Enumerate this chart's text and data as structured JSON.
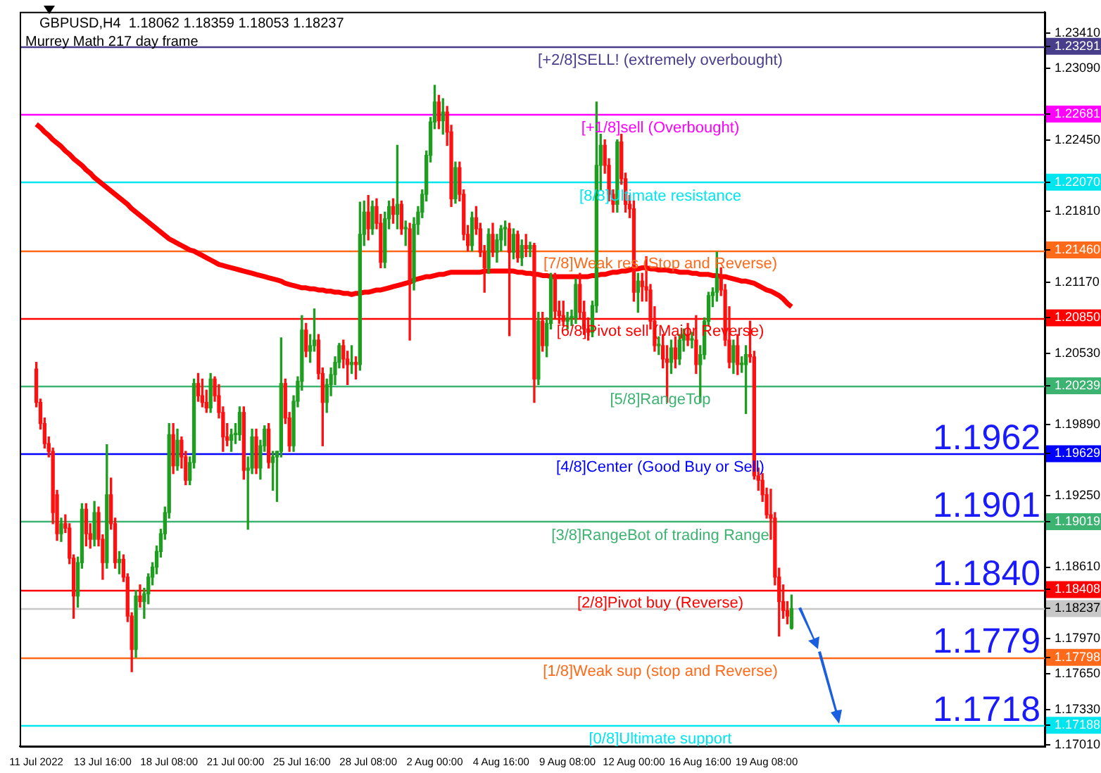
{
  "chart_data": {
    "type": "candlestick",
    "title": "GBPUSD,H4  1.18062 1.18359 1.18053 1.18237",
    "subtitle": "Murrey Math 217 day frame",
    "categories": [
      "11 Jul 2022",
      null,
      null,
      null,
      null,
      null,
      null,
      null,
      null,
      null,
      null,
      null,
      null,
      null,
      null,
      null,
      "13 Jul 16:00",
      null,
      null,
      null,
      null,
      null,
      null,
      null,
      null,
      null,
      null,
      null,
      null,
      null,
      null,
      null,
      "18 Jul 08:00",
      null,
      null,
      null,
      null,
      null,
      null,
      null,
      null,
      null,
      null,
      null,
      null,
      null,
      null,
      null,
      "21 Jul 00:00",
      null,
      null,
      null,
      null,
      null,
      null,
      null,
      null,
      null,
      null,
      null,
      null,
      null,
      null,
      null,
      "25 Jul 16:00",
      null,
      null,
      null,
      null,
      null,
      null,
      null,
      null,
      null,
      null,
      null,
      null,
      null,
      null,
      null,
      "28 Jul 08:00",
      null,
      null,
      null,
      null,
      null,
      null,
      null,
      null,
      null,
      null,
      null,
      null,
      null,
      null,
      null,
      "2 Aug 00:00",
      null,
      null,
      null,
      null,
      null,
      null,
      null,
      null,
      null,
      null,
      null,
      null,
      null,
      null,
      null,
      "4 Aug 16:00",
      null,
      null,
      null,
      null,
      null,
      null,
      null,
      null,
      null,
      null,
      null,
      null,
      null,
      null,
      null,
      "9 Aug 08:00",
      null,
      null,
      null,
      null,
      null,
      null,
      null,
      null,
      null,
      null,
      null,
      null,
      null,
      null,
      null,
      "12 Aug 00:00",
      null,
      null,
      null,
      null,
      null,
      null,
      null,
      null,
      null,
      null,
      null,
      null,
      null,
      null,
      null,
      "16 Aug 16:00",
      null,
      null,
      null,
      null,
      null,
      null,
      null,
      null,
      null,
      null,
      null,
      null,
      null,
      null,
      null,
      "19 Aug 08:00",
      null,
      null,
      null,
      null,
      null,
      null
    ],
    "ohlc": [
      [
        1.2039,
        1.2045,
        1.2005,
        1.2009
      ],
      [
        1.2009,
        1.2012,
        1.1985,
        1.199
      ],
      [
        1.199,
        1.1995,
        1.1968,
        1.1972
      ],
      [
        1.1972,
        1.1978,
        1.196,
        1.1965
      ],
      [
        1.1965,
        1.1968,
        1.19,
        1.191
      ],
      [
        1.1926,
        1.193,
        1.1885,
        1.1891
      ],
      [
        1.1891,
        1.1905,
        1.1884,
        1.19
      ],
      [
        1.19,
        1.1908,
        1.1892,
        1.1896
      ],
      [
        1.1896,
        1.19,
        1.1864,
        1.1869
      ],
      [
        1.1869,
        1.1872,
        1.1815,
        1.1835
      ],
      [
        1.1835,
        1.187,
        1.1825,
        1.1865
      ],
      [
        1.1865,
        1.1918,
        1.186,
        1.1913
      ],
      [
        1.1913,
        1.1918,
        1.188,
        1.1891
      ],
      [
        1.1891,
        1.19,
        1.1878,
        1.1886
      ],
      [
        1.1886,
        1.192,
        1.188,
        1.191
      ],
      [
        1.191,
        1.1915,
        1.188,
        1.1886
      ],
      [
        1.1886,
        1.189,
        1.185,
        1.1865
      ],
      [
        1.1865,
        1.1971,
        1.186,
        1.1926
      ],
      [
        1.1926,
        1.1941,
        1.1895,
        1.19
      ],
      [
        1.19,
        1.1905,
        1.186,
        1.1865
      ],
      [
        1.1865,
        1.1875,
        1.1855,
        1.1868
      ],
      [
        1.1868,
        1.1872,
        1.1848,
        1.1852
      ],
      [
        1.1852,
        1.1855,
        1.1812,
        1.1817
      ],
      [
        1.1817,
        1.182,
        1.1767,
        1.1787
      ],
      [
        1.1787,
        1.184,
        1.178,
        1.1835
      ],
      [
        1.1835,
        1.1845,
        1.1825,
        1.183
      ],
      [
        1.183,
        1.1842,
        1.1815,
        1.1837
      ],
      [
        1.1837,
        1.1855,
        1.1828,
        1.1852
      ],
      [
        1.1852,
        1.1865,
        1.1845,
        1.1861
      ],
      [
        1.1861,
        1.188,
        1.1855,
        1.1875
      ],
      [
        1.1875,
        1.1895,
        1.187,
        1.1891
      ],
      [
        1.1891,
        1.1915,
        1.1886,
        1.191
      ],
      [
        1.191,
        1.199,
        1.1905,
        1.198
      ],
      [
        1.198,
        1.199,
        1.1945,
        1.1952
      ],
      [
        1.1952,
        1.1985,
        1.1948,
        1.1975
      ],
      [
        1.1975,
        1.1978,
        1.195,
        1.196
      ],
      [
        1.196,
        1.1965,
        1.1935,
        1.1939
      ],
      [
        1.1939,
        1.196,
        1.1935,
        1.1955
      ],
      [
        1.1955,
        1.203,
        1.195,
        1.2026
      ],
      [
        1.2026,
        1.2035,
        1.201,
        1.2015
      ],
      [
        1.2015,
        1.203,
        1.2005,
        1.2009
      ],
      [
        1.2009,
        1.202,
        1.2,
        1.2004
      ],
      [
        1.2004,
        1.2035,
        1.2,
        1.203
      ],
      [
        1.203,
        1.2032,
        1.201,
        1.2015
      ],
      [
        1.2015,
        1.2025,
        1.1995,
        1.2
      ],
      [
        1.2,
        1.2005,
        1.1965,
        1.1978
      ],
      [
        1.1978,
        1.199,
        1.197,
        1.1975
      ],
      [
        1.1975,
        1.1985,
        1.1965,
        1.198
      ],
      [
        1.198,
        1.199,
        1.1972,
        1.198
      ],
      [
        1.198,
        1.2005,
        1.1975,
        1.2
      ],
      [
        1.2,
        1.2005,
        1.194,
        1.1948
      ],
      [
        1.1948,
        1.196,
        1.1895,
        1.195
      ],
      [
        1.195,
        1.1985,
        1.1945,
        1.1978
      ],
      [
        1.1978,
        1.1985,
        1.1945,
        1.195
      ],
      [
        1.195,
        1.1975,
        1.194,
        1.197
      ],
      [
        1.197,
        1.1988,
        1.1965,
        1.1985
      ],
      [
        1.1985,
        1.199,
        1.195,
        1.1955
      ],
      [
        1.1955,
        1.1965,
        1.193,
        1.196
      ],
      [
        1.196,
        1.1965,
        1.192,
        1.1965
      ],
      [
        1.1965,
        1.2067,
        1.196,
        1.2026
      ],
      [
        1.2026,
        1.203,
        1.199,
        1.1995
      ],
      [
        1.1995,
        1.2,
        1.1965,
        1.197
      ],
      [
        1.197,
        1.2015,
        1.1965,
        1.201
      ],
      [
        1.201,
        1.2032,
        1.2005,
        1.2028
      ],
      [
        1.2028,
        1.2087,
        1.202,
        1.2074
      ],
      [
        1.2074,
        1.208,
        1.205,
        1.2055
      ],
      [
        1.2055,
        1.207,
        1.2045,
        1.206
      ],
      [
        1.206,
        1.2093,
        1.2055,
        1.2065
      ],
      [
        1.2065,
        1.207,
        1.203,
        1.2035
      ],
      [
        1.2035,
        1.204,
        1.197,
        1.2009
      ],
      [
        1.2009,
        1.203,
        1.2,
        1.2025
      ],
      [
        1.2025,
        1.204,
        1.2015,
        1.2034
      ],
      [
        1.2034,
        1.205,
        1.2025,
        1.2045
      ],
      [
        1.2045,
        1.2062,
        1.204,
        1.206
      ],
      [
        1.206,
        1.2065,
        1.204,
        1.2048
      ],
      [
        1.2048,
        1.2055,
        1.2025,
        1.2043
      ],
      [
        1.2043,
        1.206,
        1.2035,
        1.2045
      ],
      [
        1.2045,
        1.205,
        1.203,
        1.2043
      ],
      [
        1.2043,
        1.2189,
        1.2038,
        1.216
      ],
      [
        1.216,
        1.219,
        1.215,
        1.218
      ],
      [
        1.218,
        1.2195,
        1.2155,
        1.2165
      ],
      [
        1.2165,
        1.219,
        1.216,
        1.2185
      ],
      [
        1.2185,
        1.2192,
        1.2165,
        1.217
      ],
      [
        1.217,
        1.2178,
        1.213,
        1.2135
      ],
      [
        1.2135,
        1.218,
        1.213,
        1.2174
      ],
      [
        1.2174,
        1.219,
        1.2165,
        1.2185
      ],
      [
        1.2185,
        1.2192,
        1.217,
        1.2178
      ],
      [
        1.2178,
        1.224,
        1.2165,
        1.2187
      ],
      [
        1.2187,
        1.219,
        1.216,
        1.2165
      ],
      [
        1.2165,
        1.2172,
        1.215,
        1.2165
      ],
      [
        1.2165,
        1.217,
        1.2065,
        1.2117
      ],
      [
        1.2117,
        1.2175,
        1.211,
        1.2169
      ],
      [
        1.2169,
        1.2185,
        1.216,
        1.218
      ],
      [
        1.218,
        1.22,
        1.2175,
        1.2196
      ],
      [
        1.2196,
        1.2235,
        1.219,
        1.2231
      ],
      [
        1.2231,
        1.2265,
        1.2225,
        1.2261
      ],
      [
        1.2261,
        1.2294,
        1.2255,
        1.2279
      ],
      [
        1.2279,
        1.2285,
        1.2255,
        1.2262
      ],
      [
        1.2262,
        1.2282,
        1.225,
        1.227
      ],
      [
        1.227,
        1.2275,
        1.224,
        1.2252
      ],
      [
        1.2252,
        1.2258,
        1.2185,
        1.2192
      ],
      [
        1.2192,
        1.2225,
        1.2188,
        1.222
      ],
      [
        1.222,
        1.2225,
        1.219,
        1.2196
      ],
      [
        1.2196,
        1.22,
        1.2155,
        1.216
      ],
      [
        1.216,
        1.2168,
        1.2145,
        1.215
      ],
      [
        1.215,
        1.218,
        1.2145,
        1.2175
      ],
      [
        1.2175,
        1.2185,
        1.216,
        1.2165
      ],
      [
        1.2165,
        1.217,
        1.214,
        1.2144
      ],
      [
        1.2144,
        1.215,
        1.2108,
        1.213
      ],
      [
        1.213,
        1.2165,
        1.2125,
        1.216
      ],
      [
        1.216,
        1.217,
        1.214,
        1.2144
      ],
      [
        1.2144,
        1.216,
        1.2135,
        1.2155
      ],
      [
        1.2155,
        1.2168,
        1.2145,
        1.2165
      ],
      [
        1.2165,
        1.2172,
        1.215,
        1.2165
      ],
      [
        1.2165,
        1.217,
        1.2069,
        1.2144
      ],
      [
        1.2144,
        1.2165,
        1.2138,
        1.216
      ],
      [
        1.216,
        1.2163,
        1.2135,
        1.2139
      ],
      [
        1.2139,
        1.2155,
        1.2132,
        1.215
      ],
      [
        1.215,
        1.216,
        1.214,
        1.2147
      ],
      [
        1.2147,
        1.2153,
        1.214,
        1.215
      ],
      [
        1.215,
        1.2152,
        1.2009,
        1.203
      ],
      [
        1.203,
        1.209,
        1.2025,
        1.2082
      ],
      [
        1.2082,
        1.209,
        1.2055,
        1.206
      ],
      [
        1.206,
        1.2085,
        1.205,
        1.208
      ],
      [
        1.208,
        1.2125,
        1.2075,
        1.2121
      ],
      [
        1.2121,
        1.2125,
        1.2085,
        1.2091
      ],
      [
        1.2091,
        1.21,
        1.208,
        1.2087
      ],
      [
        1.2087,
        1.21,
        1.2078,
        1.2082
      ],
      [
        1.2082,
        1.209,
        1.2075,
        1.2085
      ],
      [
        1.2085,
        1.2092,
        1.2078,
        1.2085
      ],
      [
        1.2085,
        1.212,
        1.208,
        1.2115
      ],
      [
        1.2115,
        1.2125,
        1.2085,
        1.209
      ],
      [
        1.209,
        1.21,
        1.207,
        1.2075
      ],
      [
        1.2075,
        1.2085,
        1.2065,
        1.2072
      ],
      [
        1.2072,
        1.21,
        1.2068,
        1.2096
      ],
      [
        1.2096,
        1.2279,
        1.209,
        1.2222
      ],
      [
        1.2222,
        1.225,
        1.22,
        1.224
      ],
      [
        1.224,
        1.2245,
        1.2215,
        1.2222
      ],
      [
        1.2222,
        1.2228,
        1.219,
        1.2196
      ],
      [
        1.2196,
        1.22,
        1.218,
        1.2187
      ],
      [
        1.2187,
        1.2245,
        1.218,
        1.2243
      ],
      [
        1.2243,
        1.225,
        1.2205,
        1.221
      ],
      [
        1.221,
        1.2215,
        1.218,
        1.2187
      ],
      [
        1.2187,
        1.2195,
        1.2175,
        1.2183
      ],
      [
        1.2183,
        1.219,
        1.21,
        1.2108
      ],
      [
        1.2108,
        1.2125,
        1.209,
        1.2118
      ],
      [
        1.2118,
        1.2125,
        1.21,
        1.2113
      ],
      [
        1.2113,
        1.214,
        1.21,
        1.211
      ],
      [
        1.211,
        1.2115,
        1.2075,
        1.2082
      ],
      [
        1.2082,
        1.2095,
        1.2055,
        1.206
      ],
      [
        1.206,
        1.2068,
        1.2052,
        1.206
      ],
      [
        1.206,
        1.207,
        1.204,
        1.2048
      ],
      [
        1.2048,
        1.206,
        1.2009,
        1.2045
      ],
      [
        1.2045,
        1.2065,
        1.2035,
        1.2058
      ],
      [
        1.2058,
        1.2068,
        1.204,
        1.2048
      ],
      [
        1.2048,
        1.207,
        1.2043,
        1.2065
      ],
      [
        1.2065,
        1.2075,
        1.2055,
        1.207
      ],
      [
        1.207,
        1.208,
        1.206,
        1.2065
      ],
      [
        1.2065,
        1.2072,
        1.2058,
        1.2065
      ],
      [
        1.2065,
        1.2087,
        1.2035,
        1.2043
      ],
      [
        1.2043,
        1.206,
        1.2009,
        1.2052
      ],
      [
        1.2052,
        1.2085,
        1.2048,
        1.2082
      ],
      [
        1.2082,
        1.2108,
        1.2078,
        1.2105
      ],
      [
        1.2105,
        1.2112,
        1.2095,
        1.2108
      ],
      [
        1.2108,
        1.2144,
        1.21,
        1.2121
      ],
      [
        1.2121,
        1.213,
        1.2105,
        1.211
      ],
      [
        1.211,
        1.2115,
        1.206,
        1.2065
      ],
      [
        1.2065,
        1.2095,
        1.204,
        1.2045
      ],
      [
        1.2045,
        1.2065,
        1.2035,
        1.206
      ],
      [
        1.206,
        1.207,
        1.2034,
        1.2043
      ],
      [
        1.2043,
        1.205,
        1.2036,
        1.2043
      ],
      [
        1.2043,
        1.206,
        1.1999,
        1.2052
      ],
      [
        1.2052,
        1.2082,
        1.2045,
        1.205
      ],
      [
        1.205,
        1.2055,
        1.194,
        1.1943
      ],
      [
        1.1943,
        1.195,
        1.193,
        1.1939
      ],
      [
        1.1939,
        1.1945,
        1.192,
        1.1926
      ],
      [
        1.1926,
        1.1932,
        1.1905,
        1.1908
      ],
      [
        1.1908,
        1.1931,
        1.1886,
        1.1905
      ],
      [
        1.1905,
        1.191,
        1.1845,
        1.1852
      ],
      [
        1.1852,
        1.186,
        1.1799,
        1.183
      ],
      [
        1.183,
        1.1845,
        1.1815,
        1.1822
      ],
      [
        1.1822,
        1.183,
        1.181,
        1.1817
      ],
      [
        1.18062,
        1.18359,
        1.18053,
        1.18237
      ]
    ],
    "series": [
      {
        "type": "line",
        "color": "#ff0000",
        "values": [
          1.2259,
          1.2256,
          1.2252,
          1.2249,
          1.2245,
          1.2242,
          1.2239,
          1.2235,
          1.2232,
          1.2228,
          1.2225,
          1.2222,
          1.2218,
          1.2215,
          1.2211,
          1.2208,
          1.2205,
          1.2202,
          1.2199,
          1.2196,
          1.2193,
          1.219,
          1.2187,
          1.2183,
          1.218,
          1.2177,
          1.2174,
          1.2171,
          1.2168,
          1.2165,
          1.2162,
          1.2159,
          1.2156,
          1.2154,
          1.2152,
          1.215,
          1.2148,
          1.2146,
          1.2145,
          1.2143,
          1.2141,
          1.2139,
          1.2137,
          1.2135,
          1.2133,
          1.2132,
          1.2131,
          1.213,
          1.2129,
          1.2128,
          1.2127,
          1.2126,
          1.2125,
          1.2124,
          1.2123,
          1.2122,
          1.2121,
          1.212,
          1.2119,
          1.2118,
          1.2116,
          1.2115,
          1.2114,
          1.2113,
          1.2112,
          1.2112,
          1.2111,
          1.2111,
          1.211,
          1.211,
          1.2109,
          1.2109,
          1.2108,
          1.2108,
          1.2107,
          1.2107,
          1.2106,
          1.2107,
          1.2107,
          1.2108,
          1.2108,
          1.2109,
          1.211,
          1.211,
          1.2111,
          1.2112,
          1.2113,
          1.2114,
          1.2115,
          1.2116,
          1.2117,
          1.2119,
          1.212,
          1.2121,
          1.2122,
          1.2122,
          1.2123,
          1.2124,
          1.2124,
          1.2125,
          1.2126,
          1.2126,
          1.2126,
          1.2126,
          1.2126,
          1.2126,
          1.2126,
          1.2126,
          1.2127,
          1.2127,
          1.2127,
          1.2127,
          1.2127,
          1.2127,
          1.2127,
          1.2127,
          1.2126,
          1.2126,
          1.2125,
          1.2125,
          1.2124,
          1.2124,
          1.2123,
          1.2123,
          1.2122,
          1.2122,
          1.2122,
          1.2122,
          1.2122,
          1.2122,
          1.2122,
          1.2122,
          1.2122,
          1.2122,
          1.2123,
          1.2123,
          1.2124,
          1.2124,
          1.2125,
          1.2126,
          1.2126,
          1.2127,
          1.2127,
          1.2128,
          1.2129,
          1.2129,
          1.213,
          1.213,
          1.2129,
          1.2129,
          1.2128,
          1.2128,
          1.2128,
          1.2127,
          1.2127,
          1.2126,
          1.2126,
          1.2126,
          1.2125,
          1.2125,
          1.2124,
          1.2124,
          1.2124,
          1.2123,
          1.2123,
          1.2122,
          1.2122,
          1.2121,
          1.212,
          1.2119,
          1.2118,
          1.2118,
          1.2117,
          1.2116,
          1.2114,
          1.2112,
          1.211,
          1.2109,
          1.2107,
          1.2105,
          1.2102,
          1.2098,
          1.2095
        ]
      }
    ],
    "ylim": [
      1.17,
      1.236
    ],
    "yticks": [
      {
        "value": 1.2341,
        "label": "1.23410"
      },
      {
        "value": 1.2309,
        "label": "1.23090"
      },
      {
        "value": 1.2245,
        "label": "1.22450"
      },
      {
        "value": 1.2181,
        "label": "1.21810"
      },
      {
        "value": 1.2117,
        "label": "1.21170"
      },
      {
        "value": 1.2053,
        "label": "1.20530"
      },
      {
        "value": 1.1989,
        "label": "1.19890"
      },
      {
        "value": 1.1925,
        "label": "1.19250"
      },
      {
        "value": 1.1861,
        "label": "1.18610"
      },
      {
        "value": 1.1797,
        "label": "1.17970"
      },
      {
        "value": 1.1765,
        "label": "1.17650"
      },
      {
        "value": 1.1733,
        "label": "1.17330"
      },
      {
        "value": 1.1701,
        "label": "1.17010"
      },
      {
        "value": 1.23291,
        "label": "1.23291"
      },
      {
        "value": 1.22681,
        "label": "1.22681"
      },
      {
        "value": 1.2207,
        "label": "1.22070"
      },
      {
        "value": 1.2146,
        "label": "1.21460"
      },
      {
        "value": 1.2085,
        "label": "1.20850"
      },
      {
        "value": 1.20239,
        "label": "1.20239"
      },
      {
        "value": 1.19629,
        "label": "1.19629"
      },
      {
        "value": 1.19019,
        "label": "1.19019"
      },
      {
        "value": 1.18408,
        "label": "1.18408"
      },
      {
        "value": 1.17798,
        "label": "1.17798"
      },
      {
        "value": 1.17188,
        "label": "1.17188"
      },
      {
        "value": 1.18237,
        "label": "1.18237"
      }
    ],
    "ref_lines": [
      {
        "axis": "y",
        "value": 1.23291,
        "label": "[+2/8]SELL! (extremely overbought)",
        "color": "#483d8b"
      },
      {
        "axis": "y",
        "value": 1.22681,
        "label": "[+1/8]sell (Overbought)",
        "color": "#ff00ff"
      },
      {
        "axis": "y",
        "value": 1.2207,
        "label": "[8/8]Ultimate resistance",
        "color": "#00e5ee"
      },
      {
        "axis": "y",
        "value": 1.2146,
        "label": "[7/8]Weak res (Stop and Reverse)",
        "color": "#ff6a1a"
      },
      {
        "axis": "y",
        "value": 1.2085,
        "label": "[6/8]Pivot sell (Major Reverse)",
        "color": "#ff0000"
      },
      {
        "axis": "y",
        "value": 1.20239,
        "label": "[5/8]RangeTop",
        "color": "#3cb371"
      },
      {
        "axis": "y",
        "value": 1.19629,
        "label": "[4/8]Center (Good Buy or Sell)",
        "color": "#0000ff"
      },
      {
        "axis": "y",
        "value": 1.19019,
        "label": "[3/8]RangeBot of trading Range",
        "color": "#3cb371"
      },
      {
        "axis": "y",
        "value": 1.18408,
        "label": "[2/8]Pivot buy (Reverse)",
        "color": "#ff0000"
      },
      {
        "axis": "y",
        "value": 1.17798,
        "label": "[1/8]Weak sup (stop and Reverse)",
        "color": "#ff6a1a"
      },
      {
        "axis": "y",
        "value": 1.17188,
        "label": "[0/8]Ultimate support",
        "color": "#00e5ee"
      },
      {
        "axis": "y",
        "value": 1.18237,
        "label": null,
        "color": "#c8c8c8"
      }
    ],
    "annotations": [
      {
        "text": "1.1962",
        "y": 1.1962
      },
      {
        "text": "1.1901",
        "y": 1.1901
      },
      {
        "text": "1.1840",
        "y": 1.184
      },
      {
        "text": "1.1779",
        "y": 1.1779
      },
      {
        "text": "1.1718",
        "y": 1.1718
      }
    ]
  }
}
